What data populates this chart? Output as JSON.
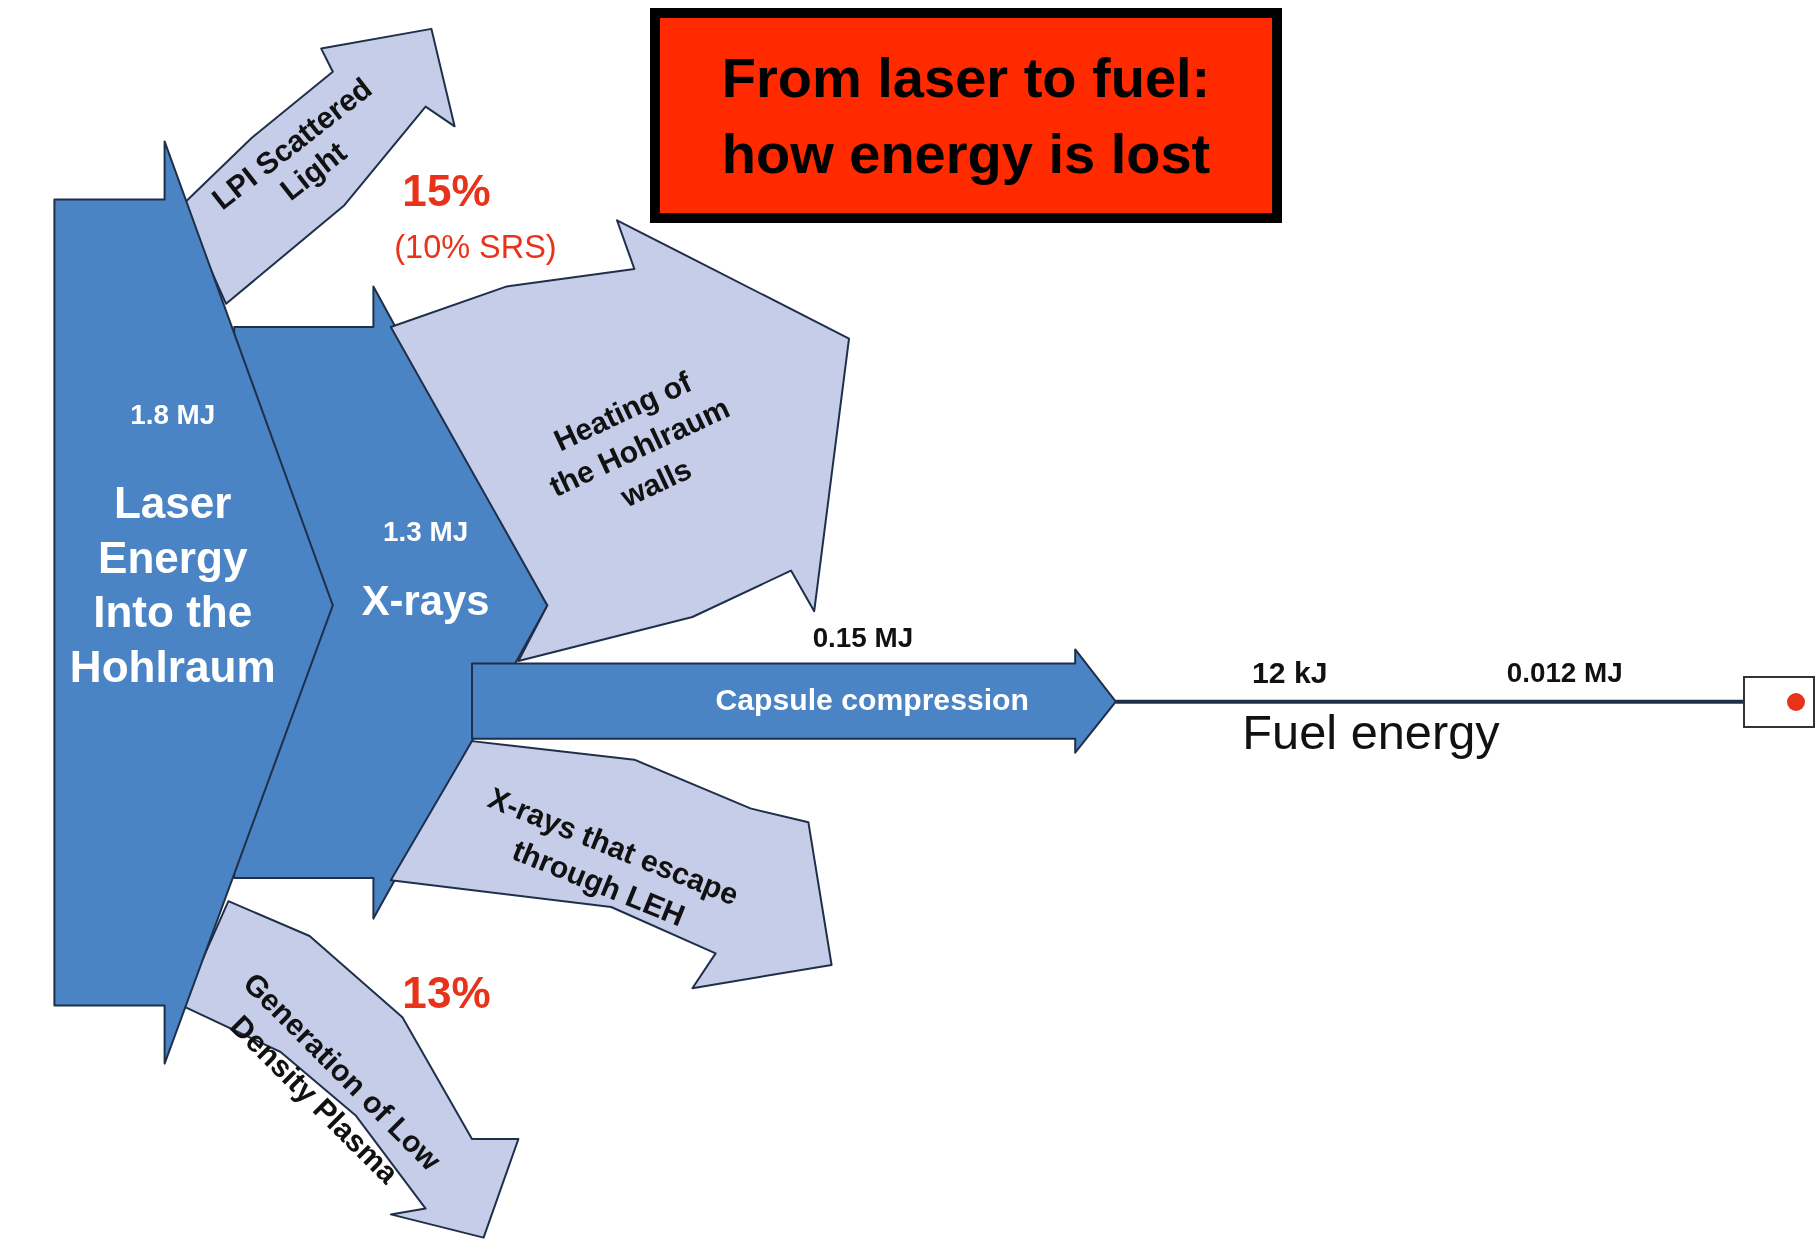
{
  "chart_data": {
    "type": "other",
    "title": "From laser to fuel: how energy is lost",
    "categories": [
      "Laser Energy Into the Hohlraum",
      "X-rays",
      "LPI Scattered Light",
      "Heating of the Hohlraum walls",
      "Capsule compression",
      "X-rays that escape through LEH",
      "Generation of Low Density Plasma",
      "Fuel energy"
    ],
    "values": [
      1.8,
      1.3,
      15,
      null,
      0.15,
      null,
      13,
      12
    ],
    "value_labels": [
      "1.8 MJ",
      "1.3 MJ",
      "15%",
      null,
      "0.15 MJ",
      null,
      "13%",
      "12 kJ"
    ],
    "colors": [
      "#4a84c4",
      "#4a84c4",
      "#c5cde9",
      "#c5cde9",
      "#4a84c4",
      "#c5cde9",
      "#c5cde9",
      "#1f2f4a"
    ],
    "annotations": [
      "(10% SRS)",
      "0.012 MJ"
    ]
  }
}
